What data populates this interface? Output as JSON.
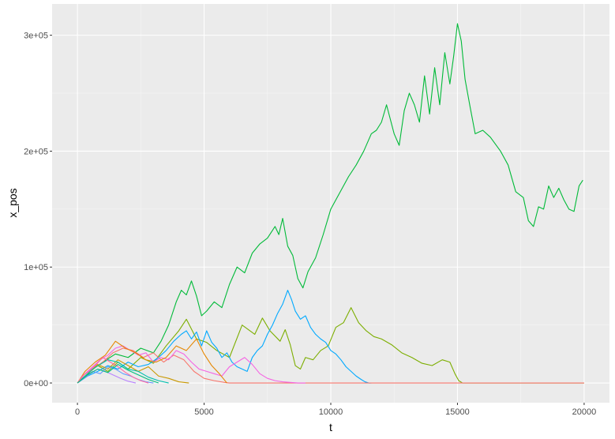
{
  "chart_data": {
    "type": "line",
    "title": "",
    "xlabel": "t",
    "ylabel": "x_pos",
    "xlim": [
      -1000,
      21000
    ],
    "ylim": [
      -17000,
      327000
    ],
    "x_ticks": [
      0,
      5000,
      10000,
      15000,
      20000
    ],
    "x_tick_labels": [
      "0",
      "5000",
      "10000",
      "15000",
      "20000"
    ],
    "y_ticks": [
      0,
      100000,
      200000,
      300000
    ],
    "y_tick_labels": [
      "0e+00",
      "1e+05",
      "2e+05",
      "3e+05"
    ],
    "grid": true,
    "legend": "none",
    "colors": {
      "panel_bg": "#ebebeb",
      "grid_major": "#ffffff"
    },
    "series": [
      {
        "color": "#00BA38",
        "x": [
          0,
          300,
          600,
          1000,
          1500,
          2000,
          2500,
          3000,
          3300,
          3600,
          3900,
          4100,
          4300,
          4500,
          4700,
          4900,
          5100,
          5400,
          5700,
          6000,
          6300,
          6600,
          6900,
          7200,
          7500,
          7800,
          7950,
          8100,
          8300,
          8500,
          8700,
          8900,
          9100,
          9400,
          9700,
          10000,
          10300,
          10700,
          11000,
          11300,
          11600,
          11800,
          12000,
          12200,
          12500,
          12700,
          12900,
          13100,
          13300,
          13500,
          13700,
          13900,
          14100,
          14300,
          14500,
          14700,
          14850,
          15000,
          15150,
          15300,
          15500,
          15700,
          16000,
          16300,
          16700,
          17000,
          17300,
          17600,
          17800,
          18000,
          18200,
          18400,
          18600,
          18800,
          19000,
          19200,
          19400,
          19600,
          19800,
          19950
        ],
        "y": [
          0,
          5000,
          12000,
          18000,
          25000,
          22000,
          30000,
          26000,
          36000,
          50000,
          70000,
          80000,
          76000,
          88000,
          75000,
          58000,
          62000,
          70000,
          65000,
          85000,
          100000,
          95000,
          112000,
          120000,
          125000,
          135000,
          128000,
          142000,
          118000,
          110000,
          90000,
          82000,
          96000,
          108000,
          128000,
          150000,
          162000,
          178000,
          188000,
          200000,
          215000,
          218000,
          225000,
          240000,
          215000,
          205000,
          235000,
          250000,
          240000,
          225000,
          265000,
          232000,
          272000,
          240000,
          285000,
          258000,
          282000,
          310000,
          295000,
          262000,
          238000,
          215000,
          218000,
          212000,
          200000,
          188000,
          165000,
          160000,
          140000,
          135000,
          152000,
          150000,
          170000,
          160000,
          168000,
          158000,
          150000,
          148000,
          170000,
          175000
        ]
      },
      {
        "color": "#7CAE00",
        "x": [
          0,
          400,
          800,
          1200,
          1600,
          2000,
          2500,
          3000,
          3500,
          4000,
          4300,
          4700,
          5100,
          5500,
          6000,
          6500,
          7000,
          7300,
          7600,
          8000,
          8200,
          8400,
          8600,
          8800,
          9000,
          9300,
          9600,
          9900,
          10200,
          10500,
          10800,
          11100,
          11400,
          11700,
          12000,
          12400,
          12800,
          13200,
          13600,
          14000,
          14400,
          14700,
          14900,
          15050,
          15200,
          16000,
          18000,
          20000
        ],
        "y": [
          0,
          8000,
          15000,
          10000,
          18000,
          12000,
          22000,
          17000,
          32000,
          45000,
          55000,
          38000,
          35000,
          28000,
          22000,
          50000,
          42000,
          56000,
          45000,
          36000,
          46000,
          33000,
          15000,
          12000,
          22000,
          20000,
          28000,
          32000,
          48000,
          52000,
          65000,
          52000,
          45000,
          40000,
          38000,
          33000,
          26000,
          22000,
          17000,
          15000,
          20000,
          18000,
          8000,
          2000,
          0,
          0,
          0,
          0
        ]
      },
      {
        "color": "#00A9FF",
        "x": [
          0,
          400,
          800,
          1200,
          1600,
          2000,
          2400,
          2800,
          3200,
          3500,
          3800,
          4100,
          4300,
          4500,
          4700,
          4900,
          5100,
          5300,
          5500,
          5700,
          5900,
          6100,
          6300,
          6500,
          6700,
          6900,
          7100,
          7300,
          7500,
          7700,
          7900,
          8100,
          8300,
          8450,
          8600,
          8800,
          9000,
          9200,
          9400,
          9600,
          9800,
          10000,
          10200,
          10400,
          10600,
          10800,
          11000,
          11200,
          11350,
          11500,
          11600
        ],
        "y": [
          0,
          6000,
          10000,
          15000,
          12000,
          18000,
          14000,
          16000,
          22000,
          28000,
          36000,
          42000,
          45000,
          38000,
          44000,
          32000,
          45000,
          35000,
          30000,
          22000,
          26000,
          18000,
          14000,
          12000,
          10000,
          22000,
          28000,
          32000,
          42000,
          50000,
          60000,
          68000,
          80000,
          72000,
          62000,
          55000,
          58000,
          48000,
          42000,
          38000,
          35000,
          28000,
          25000,
          20000,
          14000,
          10000,
          6000,
          3000,
          1000,
          0,
          0
        ]
      },
      {
        "color": "#F8766D",
        "x": [
          0,
          600,
          1000,
          1400,
          1800,
          2200,
          2600,
          3000,
          3400,
          3800,
          4200,
          4600,
          5000,
          5400,
          5800,
          6000,
          8000,
          10000,
          12000,
          14000,
          16000,
          18000,
          20000
        ],
        "y": [
          0,
          12000,
          18000,
          26000,
          30000,
          28000,
          22000,
          26000,
          18000,
          24000,
          20000,
          10000,
          4000,
          2000,
          500,
          0,
          0,
          0,
          0,
          0,
          0,
          0,
          0
        ]
      },
      {
        "color": "#F564E3",
        "x": [
          0,
          300,
          600,
          900,
          1200,
          1500,
          1800,
          2100,
          2400,
          2700,
          3000,
          3300,
          3600,
          3900,
          4200,
          4500,
          4800,
          5100,
          5400,
          5700,
          6000,
          6300,
          6600,
          6900,
          7200,
          7500,
          7800,
          8100,
          8400,
          8700,
          9000
        ],
        "y": [
          0,
          8000,
          14000,
          20000,
          24000,
          30000,
          32000,
          28000,
          24000,
          26000,
          18000,
          22000,
          20000,
          28000,
          25000,
          18000,
          12000,
          10000,
          8000,
          6000,
          14000,
          18000,
          22000,
          16000,
          8000,
          4000,
          2000,
          1000,
          500,
          0,
          0
        ]
      },
      {
        "color": "#E58700",
        "x": [
          0,
          300,
          700,
          1100,
          1500,
          1900,
          2300,
          2700,
          3100,
          3500,
          3900,
          4300,
          4700,
          5000,
          5300,
          5600,
          5900
        ],
        "y": [
          0,
          10000,
          18000,
          24000,
          36000,
          30000,
          26000,
          20000,
          18000,
          22000,
          32000,
          28000,
          38000,
          25000,
          15000,
          8000,
          0
        ]
      },
      {
        "color": "#C99800",
        "x": [
          0,
          400,
          800,
          1200,
          1600,
          2000,
          2400,
          2800,
          3200,
          3600,
          4000,
          4400
        ],
        "y": [
          0,
          8000,
          16000,
          12000,
          20000,
          15000,
          10000,
          14000,
          6000,
          4000,
          1000,
          0
        ]
      },
      {
        "color": "#00C0AF",
        "x": [
          0,
          300,
          600,
          900,
          1200,
          1600,
          2000,
          2400,
          2800,
          3200,
          3600
        ],
        "y": [
          0,
          6000,
          12000,
          16000,
          20000,
          18000,
          12000,
          10000,
          5000,
          2000,
          0
        ]
      },
      {
        "color": "#619CFF",
        "x": [
          0,
          300,
          600,
          900,
          1200,
          1500,
          1800,
          2100,
          2400,
          2700,
          3000
        ],
        "y": [
          0,
          5000,
          10000,
          8000,
          14000,
          12000,
          8000,
          6000,
          3000,
          1000,
          0
        ]
      },
      {
        "color": "#B983FF",
        "x": [
          0,
          250,
          500,
          800,
          1100,
          1400,
          1700,
          2000,
          2300
        ],
        "y": [
          0,
          4000,
          8000,
          12000,
          10000,
          7000,
          4000,
          1500,
          0
        ]
      },
      {
        "color": "#FF67A4",
        "x": [
          0,
          200,
          450,
          700,
          1000,
          1300,
          1600,
          1900,
          2200,
          2500,
          2800
        ],
        "y": [
          0,
          6000,
          10000,
          15000,
          22000,
          18000,
          14000,
          9000,
          5000,
          2000,
          0
        ]
      },
      {
        "color": "#00BF7D",
        "x": [
          0,
          400,
          800,
          1200,
          1600,
          2000,
          2400,
          2800,
          3200
        ],
        "y": [
          0,
          7000,
          12000,
          9000,
          16000,
          11000,
          7000,
          3000,
          0
        ]
      }
    ]
  }
}
